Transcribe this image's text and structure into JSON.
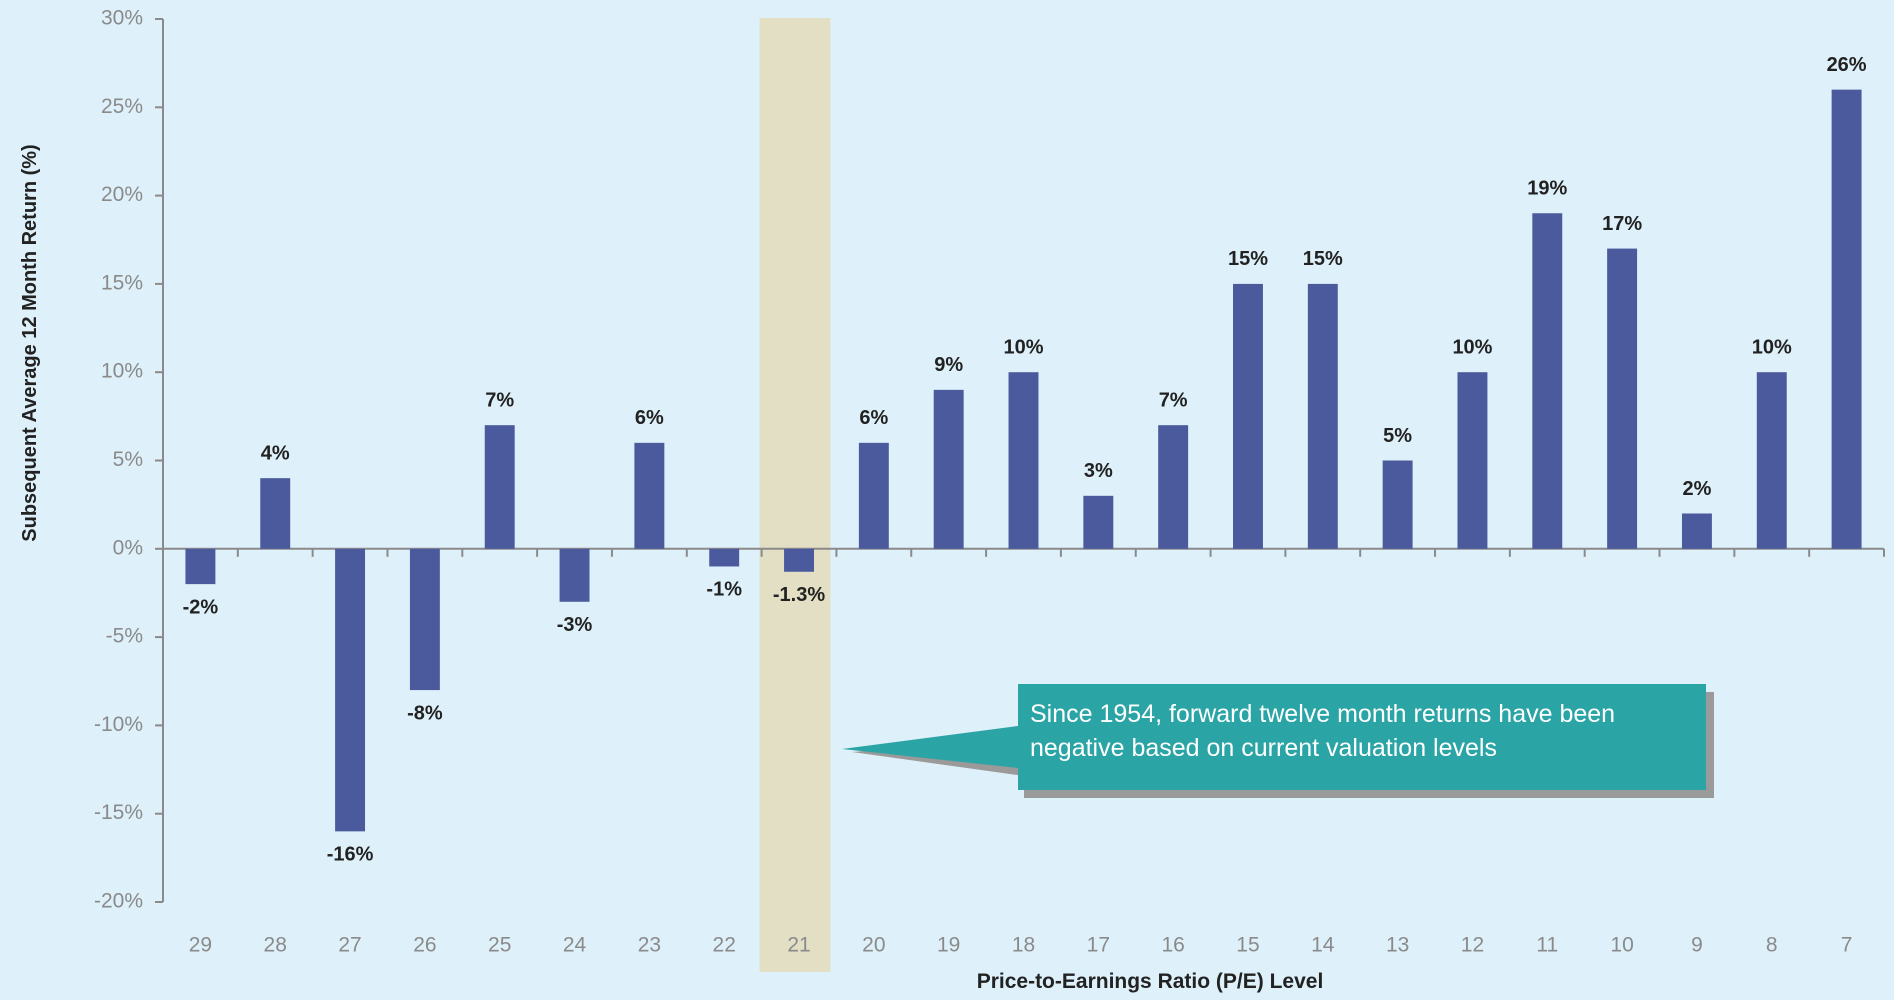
{
  "chart_data": {
    "type": "bar",
    "x_label": "Price-to-Earnings Ratio (P/E) Level",
    "y_label": "Subsequent Average 12 Month Return (%)",
    "categories": [
      "29",
      "28",
      "27",
      "26",
      "25",
      "24",
      "23",
      "22",
      "21",
      "20",
      "19",
      "18",
      "17",
      "16",
      "15",
      "14",
      "13",
      "12",
      "11",
      "10",
      "9",
      "8",
      "7"
    ],
    "values": [
      -2,
      4,
      -16,
      -8,
      7,
      -3,
      6,
      -1,
      -1.3,
      6,
      9,
      10,
      3,
      7,
      15,
      15,
      5,
      10,
      19,
      17,
      2,
      10,
      26
    ],
    "value_labels": [
      "-2%",
      "4%",
      "-16%",
      "-8%",
      "7%",
      "-3%",
      "6%",
      "-1%",
      "-1.3%",
      "6%",
      "9%",
      "10%",
      "3%",
      "7%",
      "15%",
      "15%",
      "5%",
      "10%",
      "19%",
      "17%",
      "2%",
      "10%",
      "26%"
    ],
    "color": "#4b5a9c",
    "highlight_category": "21",
    "highlight_color": "#e2dfc4",
    "ylim": [
      -20,
      30
    ],
    "yticks": [
      {
        "value": -20,
        "label": "-20%"
      },
      {
        "value": -15,
        "label": "-15%"
      },
      {
        "value": -10,
        "label": "-10%"
      },
      {
        "value": -5,
        "label": "-5%"
      },
      {
        "value": 0,
        "label": "0%"
      },
      {
        "value": 5,
        "label": "5%"
      },
      {
        "value": 10,
        "label": "10%"
      },
      {
        "value": 15,
        "label": "15%"
      },
      {
        "value": 20,
        "label": "20%"
      },
      {
        "value": 25,
        "label": "25%"
      },
      {
        "value": 30,
        "label": "30%"
      }
    ],
    "annotation": "Since 1954, forward twelve month returns have been negative based on current valuation levels",
    "annotation_color": "#2ba4a6"
  }
}
